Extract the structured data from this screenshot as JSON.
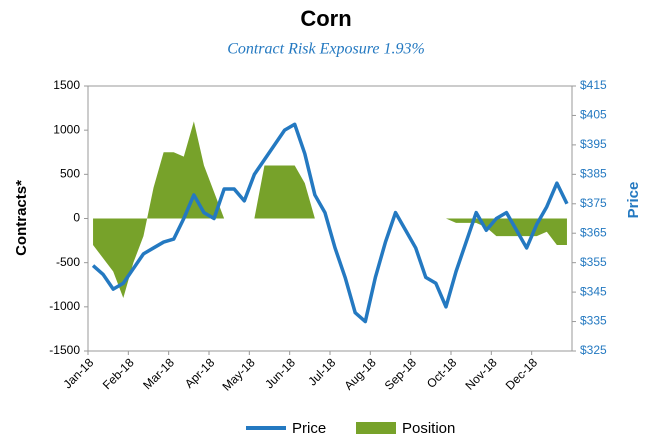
{
  "chart_data": {
    "type": "line-area",
    "title": "Corn",
    "subtitle": "Contract Risk Exposure 1.93%",
    "ylabel": "Contracts*",
    "y2label": "Price",
    "categories": [
      "Jan-18",
      null,
      null,
      null,
      "Feb-18",
      null,
      null,
      null,
      "Mar-18",
      null,
      null,
      null,
      "Apr-18",
      null,
      null,
      null,
      "May-18",
      null,
      null,
      null,
      "Jun-18",
      null,
      null,
      null,
      "Jul-18",
      null,
      null,
      null,
      "Aug-18",
      null,
      null,
      null,
      "Sep-18",
      null,
      null,
      null,
      "Oct-18",
      null,
      null,
      null,
      "Nov-18",
      null,
      null,
      null,
      "Dec-18",
      null,
      null,
      null
    ],
    "series": [
      {
        "name": "Price",
        "color": "#2479c1",
        "axis": "y2",
        "kind": "line",
        "values": [
          354,
          351,
          346,
          348,
          353,
          358,
          360,
          362,
          363,
          370,
          378,
          372,
          370,
          380,
          380,
          376,
          385,
          390,
          395,
          400,
          402,
          392,
          378,
          372,
          360,
          350,
          338,
          335,
          350,
          362,
          372,
          366,
          360,
          350,
          348,
          340,
          352,
          362,
          372,
          366,
          370,
          372,
          366,
          360,
          368,
          374,
          382,
          375
        ]
      },
      {
        "name": "Position",
        "color": "#77a22a",
        "axis": "y",
        "kind": "area",
        "values": [
          -300,
          -450,
          -600,
          -900,
          -500,
          -200,
          350,
          750,
          750,
          700,
          1100,
          600,
          300,
          0,
          0,
          0,
          0,
          600,
          600,
          600,
          600,
          400,
          0,
          0,
          0,
          0,
          0,
          0,
          0,
          0,
          0,
          0,
          0,
          0,
          0,
          0,
          -50,
          -50,
          -50,
          -100,
          -200,
          -200,
          -200,
          -200,
          -200,
          -150,
          -300,
          -300
        ]
      }
    ],
    "ylim": [
      -1500,
      1500
    ],
    "yticks": [
      -1500,
      -1000,
      -500,
      0,
      500,
      1000,
      1500
    ],
    "y2lim": [
      325,
      415
    ],
    "y2ticks": [
      {
        "value": 325,
        "label": "$325"
      },
      {
        "value": 335,
        "label": "$335"
      },
      {
        "value": 345,
        "label": "$345"
      },
      {
        "value": 355,
        "label": "$355"
      },
      {
        "value": 365,
        "label": "$365"
      },
      {
        "value": 375,
        "label": "$375"
      },
      {
        "value": 385,
        "label": "$385"
      },
      {
        "value": 395,
        "label": "$395"
      },
      {
        "value": 405,
        "label": "$405"
      },
      {
        "value": 415,
        "label": "$415"
      }
    ],
    "legend": "bottom"
  }
}
